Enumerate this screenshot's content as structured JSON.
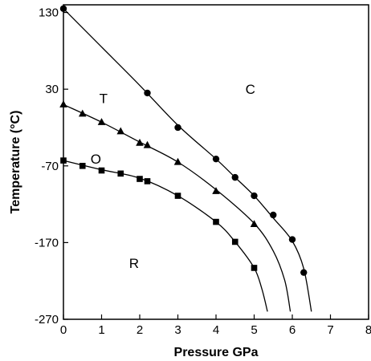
{
  "chart_data": {
    "type": "scatter",
    "title": "",
    "xlabel": "Pressure GPa",
    "ylabel": "Temperature (°C)",
    "xlim": [
      0,
      8
    ],
    "ylim": [
      -270,
      140
    ],
    "xticks": [
      0,
      1,
      2,
      3,
      4,
      5,
      6,
      7,
      8
    ],
    "yticks": [
      130,
      30,
      -70,
      -170,
      -270
    ],
    "grid": false,
    "legend": "none",
    "region_labels": [
      {
        "text": "C",
        "x": 4.9,
        "y": 30
      },
      {
        "text": "T",
        "x": 1.05,
        "y": 18
      },
      {
        "text": "O",
        "x": 0.85,
        "y": -61
      },
      {
        "text": "R",
        "x": 1.85,
        "y": -197
      }
    ],
    "series": [
      {
        "marker": "circle",
        "points": [
          [
            0,
            135
          ],
          [
            2.2,
            25
          ],
          [
            3.0,
            -20
          ],
          [
            4.0,
            -61
          ],
          [
            4.5,
            -85
          ],
          [
            5.0,
            -109
          ],
          [
            5.5,
            -134
          ],
          [
            6.0,
            -166
          ],
          [
            6.3,
            -209
          ]
        ],
        "curve": [
          [
            0,
            135
          ],
          [
            1,
            85
          ],
          [
            2,
            35
          ],
          [
            3,
            -17
          ],
          [
            4,
            -61
          ],
          [
            4.5,
            -85
          ],
          [
            5,
            -109
          ],
          [
            5.5,
            -138
          ],
          [
            6.0,
            -168
          ],
          [
            6.3,
            -204
          ],
          [
            6.5,
            -260
          ]
        ]
      },
      {
        "marker": "triangle",
        "points": [
          [
            0,
            10
          ],
          [
            0.5,
            -2
          ],
          [
            1.0,
            -13
          ],
          [
            1.5,
            -25
          ],
          [
            2.0,
            -40
          ],
          [
            2.2,
            -43
          ],
          [
            3.0,
            -65
          ],
          [
            4.0,
            -103
          ],
          [
            5.0,
            -146
          ]
        ],
        "curve": [
          [
            0,
            10
          ],
          [
            1,
            -13
          ],
          [
            2,
            -39
          ],
          [
            3,
            -65
          ],
          [
            4,
            -101
          ],
          [
            5,
            -145
          ],
          [
            5.5,
            -181
          ],
          [
            5.8,
            -219
          ],
          [
            5.95,
            -260
          ]
        ]
      },
      {
        "marker": "square",
        "points": [
          [
            0,
            -63
          ],
          [
            0.5,
            -70
          ],
          [
            1.0,
            -76
          ],
          [
            1.5,
            -80
          ],
          [
            2.0,
            -87
          ],
          [
            2.2,
            -90
          ],
          [
            3.0,
            -109
          ],
          [
            4.0,
            -143
          ],
          [
            4.5,
            -169
          ],
          [
            5.0,
            -203
          ]
        ],
        "curve": [
          [
            0,
            -63
          ],
          [
            1,
            -75
          ],
          [
            2,
            -86
          ],
          [
            3,
            -109
          ],
          [
            4,
            -143
          ],
          [
            4.5,
            -169
          ],
          [
            5.0,
            -203
          ],
          [
            5.2,
            -230
          ],
          [
            5.35,
            -260
          ]
        ]
      }
    ]
  }
}
